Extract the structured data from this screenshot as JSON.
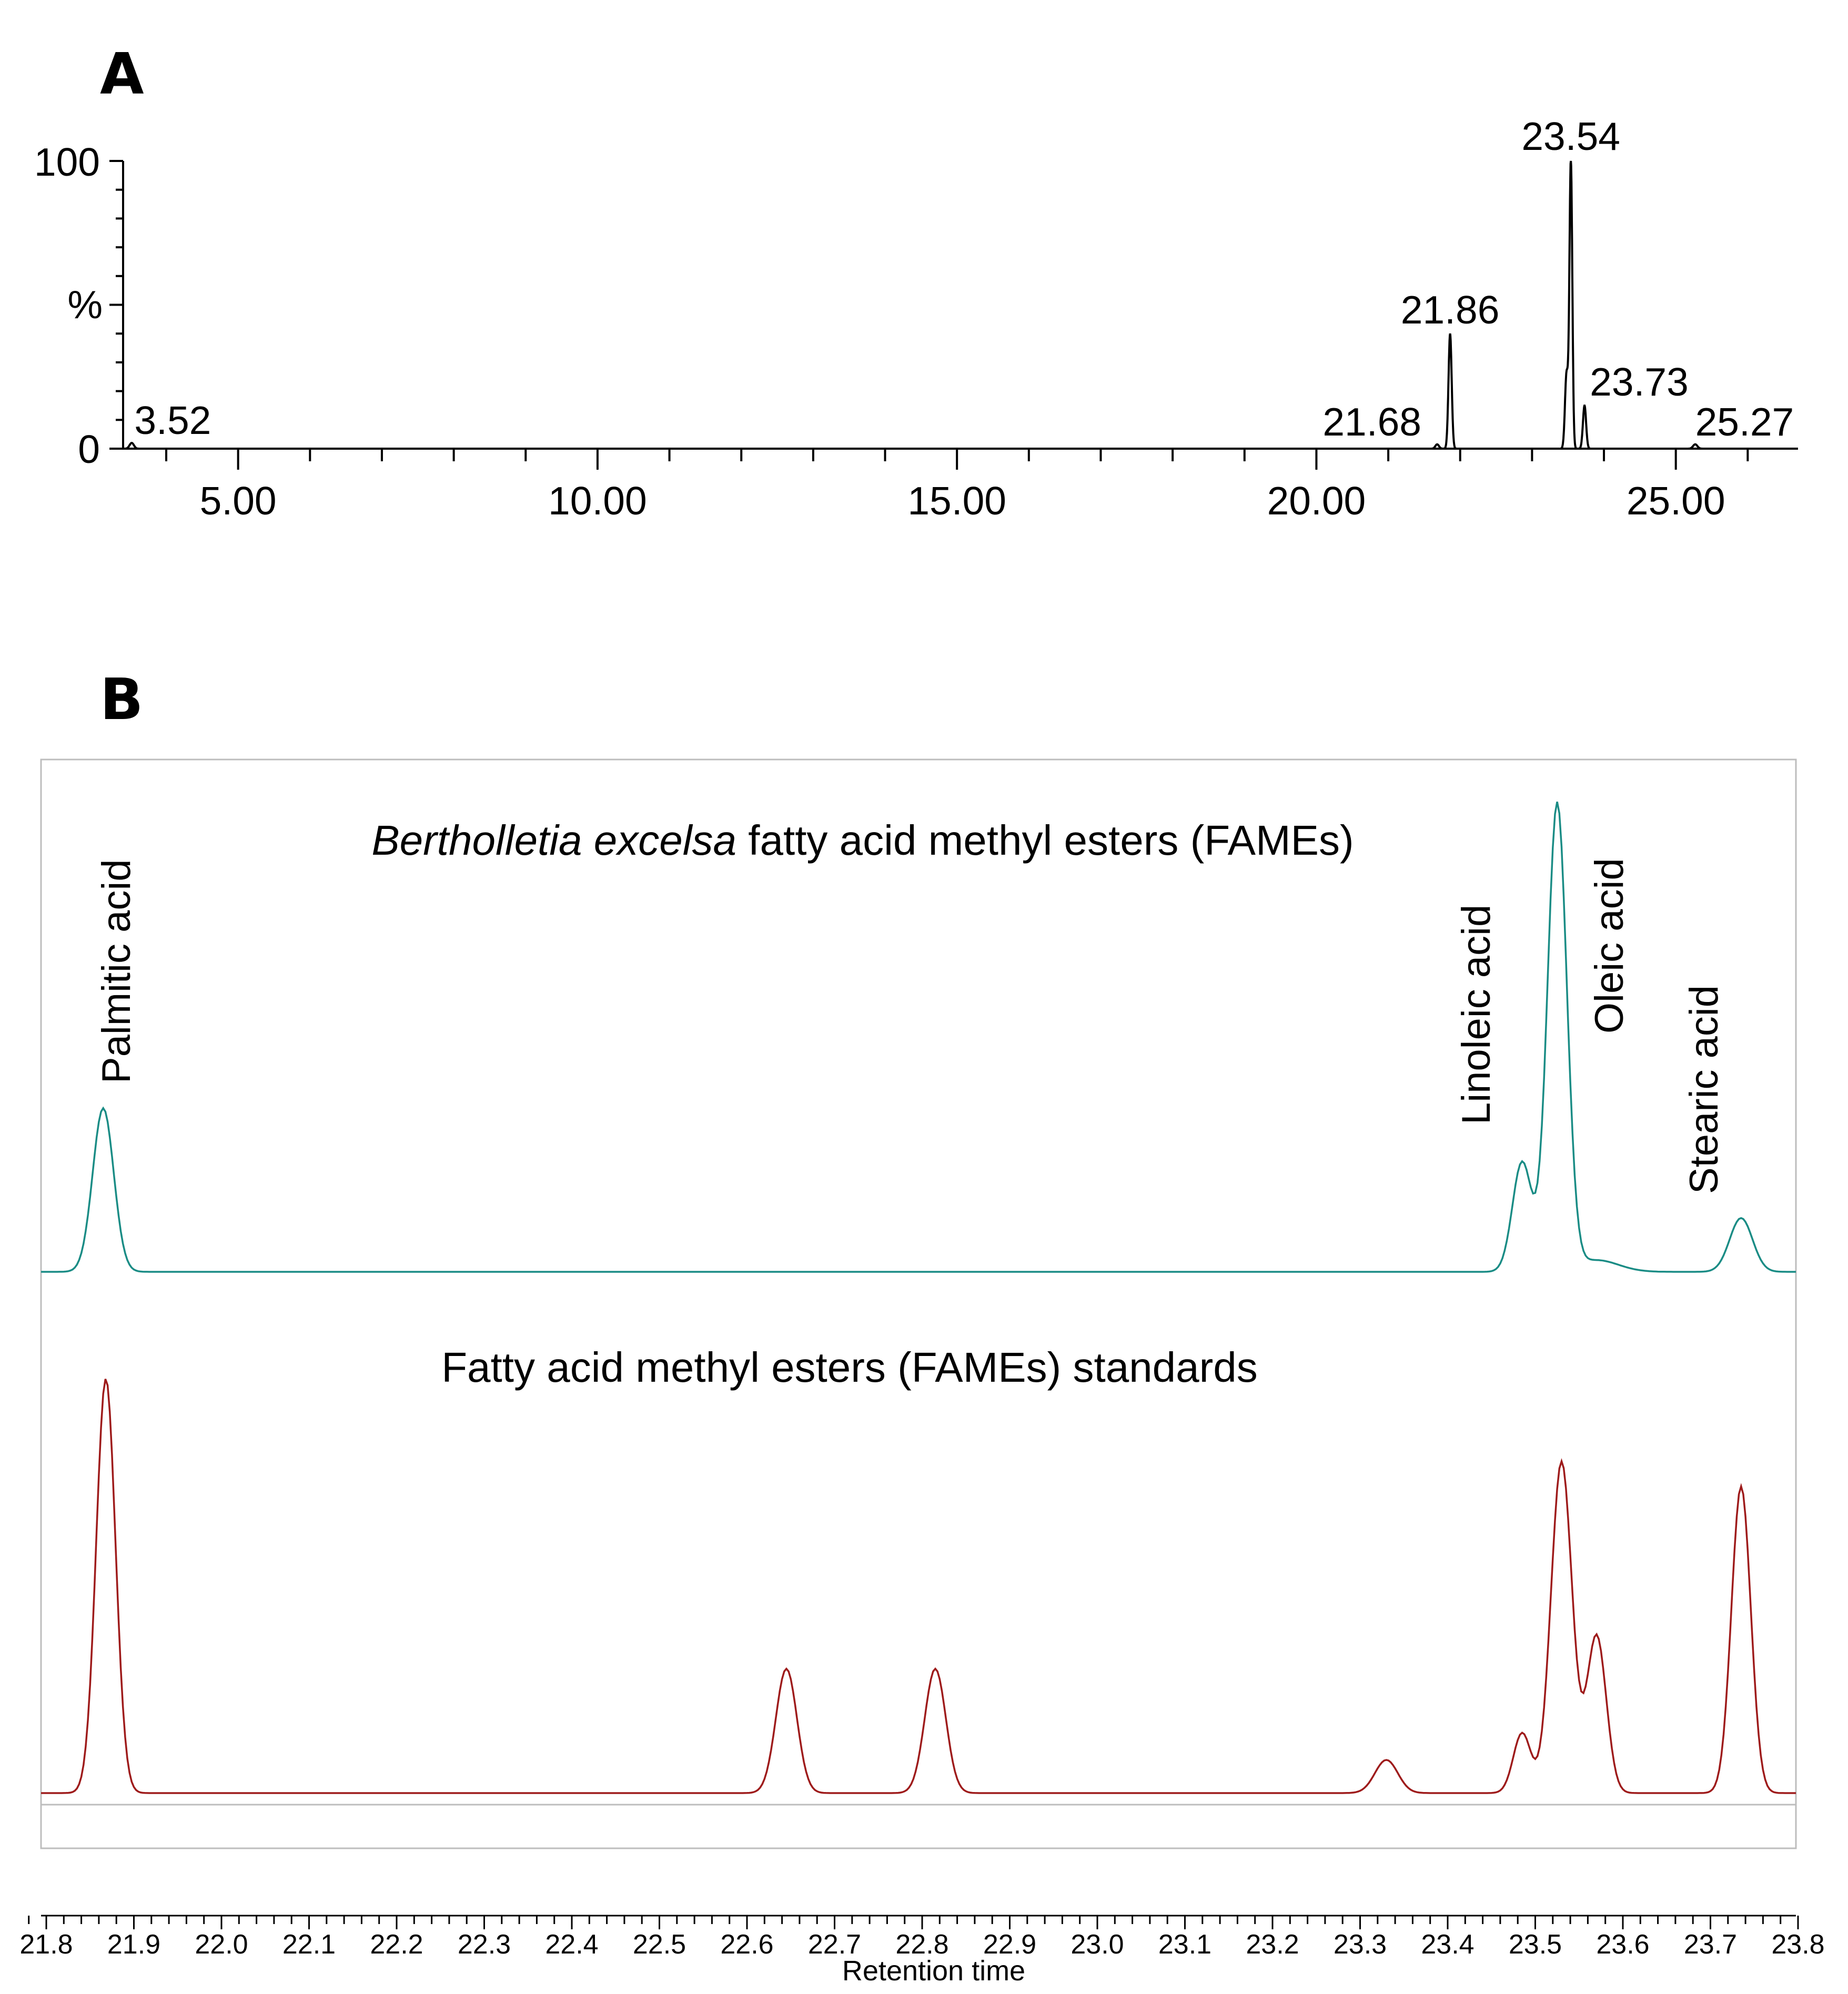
{
  "chart_data": [
    {
      "id": "A",
      "type": "line",
      "panel_label": "A",
      "title": "",
      "xlabel": "",
      "ylabel": "%",
      "xlim": [
        3.4,
        26.7
      ],
      "ylim": [
        0,
        100
      ],
      "x_major_ticks": [
        5,
        10,
        15,
        20,
        25
      ],
      "x_tick_labels": [
        "5.00",
        "10.00",
        "15.00",
        "20.00",
        "25.00"
      ],
      "y_tick_labels": [
        "0",
        "100"
      ],
      "peaks": [
        {
          "rt": 3.52,
          "label": "3.52",
          "height": 2.0,
          "width": 0.03
        },
        {
          "rt": 21.68,
          "label": "21.68",
          "height": 1.5,
          "width": 0.025
        },
        {
          "rt": 21.86,
          "label": "21.86",
          "height": 40.0,
          "width": 0.022
        },
        {
          "rt": 23.48,
          "label": "",
          "height": 26.0,
          "width": 0.022
        },
        {
          "rt": 23.54,
          "label": "23.54",
          "height": 100.0,
          "width": 0.02
        },
        {
          "rt": 23.73,
          "label": "23.73",
          "height": 15.0,
          "width": 0.022
        },
        {
          "rt": 25.27,
          "label": "25.27",
          "height": 1.5,
          "width": 0.03
        }
      ]
    },
    {
      "id": "B",
      "type": "line",
      "panel_label": "B",
      "xlabel": "Retention time",
      "xlim": [
        21.78,
        23.8
      ],
      "x_tick_labels": [
        "21.8",
        "21.9",
        "22.0",
        "22.1",
        "22.2",
        "22.3",
        "22.4",
        "22.5",
        "22.6",
        "22.7",
        "22.8",
        "22.9",
        "23.0",
        "23.1",
        "23.2",
        "23.3",
        "23.4",
        "23.5",
        "23.6",
        "23.7",
        "23.8"
      ],
      "series": [
        {
          "name_italic": "Bertholletia excelsa",
          "name_rest": " fatty acid methyl esters (FAMEs)",
          "color": "#1a8c85",
          "ylim": [
            0,
            100
          ],
          "peaks": [
            {
              "rt": 21.865,
              "height": 35.0,
              "width": 0.012
            },
            {
              "rt": 23.485,
              "height": 23.5,
              "width": 0.011
            },
            {
              "rt": 23.525,
              "height": 100.0,
              "width": 0.011
            },
            {
              "rt": 23.57,
              "height": 2.5,
              "width": 0.025
            },
            {
              "rt": 23.735,
              "height": 11.5,
              "width": 0.013
            }
          ],
          "compounds": [
            {
              "name": "Palmitic acid",
              "rt": 21.865
            },
            {
              "name": "Linoleic acid",
              "rt": 23.48
            },
            {
              "name": "Oleic acid",
              "rt": 23.57
            },
            {
              "name": "Stearic acid",
              "rt": 23.74
            }
          ]
        },
        {
          "name": "Fatty acid methyl esters (FAMEs) standards",
          "color": "#9e1b1b",
          "ylim": [
            0,
            100
          ],
          "peaks": [
            {
              "rt": 21.868,
              "height": 100.0,
              "width": 0.011
            },
            {
              "rt": 22.645,
              "height": 30.0,
              "width": 0.012
            },
            {
              "rt": 22.815,
              "height": 30.0,
              "width": 0.012
            },
            {
              "rt": 23.33,
              "height": 8.0,
              "width": 0.013
            },
            {
              "rt": 23.485,
              "height": 14.5,
              "width": 0.01
            },
            {
              "rt": 23.53,
              "height": 80.0,
              "width": 0.012
            },
            {
              "rt": 23.57,
              "height": 38.0,
              "width": 0.011
            },
            {
              "rt": 23.735,
              "height": 74.0,
              "width": 0.011
            }
          ]
        }
      ]
    }
  ]
}
